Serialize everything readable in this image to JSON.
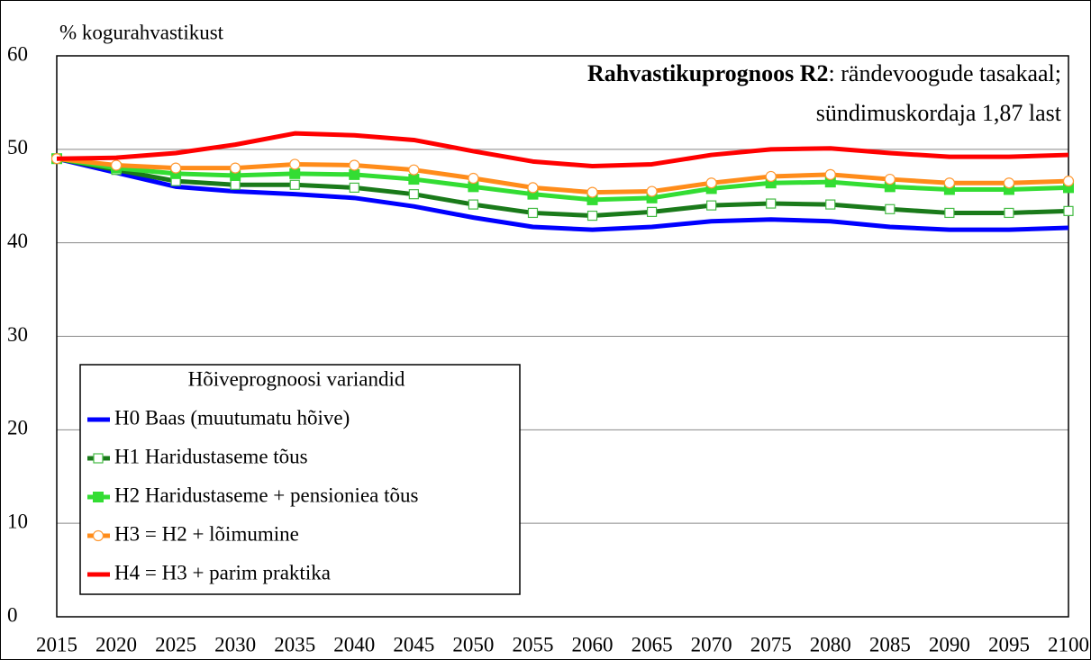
{
  "chart_data": {
    "type": "line",
    "title": "Rahvastikuprognoos R2",
    "title_suffix": ": rändevoogude tasakaal;",
    "subtitle": "sündimuskordaja 1,87 last",
    "y_label": "% kogurahvastikust",
    "legend_title": "Hõiveprognoosi variandid",
    "legend_position": "lower-left",
    "grid": true,
    "x": [
      2015,
      2020,
      2025,
      2030,
      2035,
      2040,
      2045,
      2050,
      2055,
      2060,
      2065,
      2070,
      2075,
      2080,
      2085,
      2090,
      2095,
      2100
    ],
    "xlim": [
      2015,
      2100
    ],
    "xticks": [
      2015,
      2020,
      2025,
      2030,
      2035,
      2040,
      2045,
      2050,
      2055,
      2060,
      2065,
      2070,
      2075,
      2080,
      2085,
      2090,
      2095,
      2100
    ],
    "ylim": [
      0,
      60
    ],
    "yticks": [
      0,
      10,
      20,
      30,
      40,
      50,
      60
    ],
    "series": [
      {
        "name": "H0 Baas (muutumatu hõive)",
        "color": "#0000ff",
        "marker": "none",
        "values": [
          49,
          47.5,
          46.0,
          45.5,
          45.2,
          44.8,
          43.9,
          42.7,
          41.7,
          41.4,
          41.7,
          42.3,
          42.5,
          42.3,
          41.7,
          41.4,
          41.4,
          41.6
        ]
      },
      {
        "name": "H1 Haridustaseme tõus",
        "color": "#1a7a1a",
        "marker": "hollow-square",
        "marker_color": "#44bb44",
        "values": [
          49,
          47.8,
          46.6,
          46.2,
          46.2,
          45.9,
          45.2,
          44.1,
          43.2,
          42.9,
          43.3,
          44.0,
          44.2,
          44.1,
          43.6,
          43.2,
          43.2,
          43.4
        ]
      },
      {
        "name": "H2 Haridustaseme + pensioniea tõus",
        "color": "#33dd33",
        "marker": "square",
        "marker_color": "#33dd33",
        "values": [
          49,
          48.0,
          47.4,
          47.2,
          47.4,
          47.3,
          46.8,
          46.0,
          45.2,
          44.6,
          44.8,
          45.8,
          46.4,
          46.5,
          46.0,
          45.7,
          45.7,
          45.9
        ]
      },
      {
        "name": "H3 = H2 + lõimumine",
        "color": "#ff8c1a",
        "marker": "hollow-circle",
        "marker_color": "#ff9933",
        "values": [
          49,
          48.3,
          48.0,
          48.0,
          48.4,
          48.3,
          47.8,
          46.9,
          45.9,
          45.4,
          45.5,
          46.4,
          47.1,
          47.3,
          46.8,
          46.4,
          46.4,
          46.6
        ]
      },
      {
        "name": "H4 = H3 + parim praktika",
        "color": "#ff0000",
        "marker": "none",
        "values": [
          49,
          49.1,
          49.6,
          50.5,
          51.7,
          51.5,
          51.0,
          49.8,
          48.7,
          48.2,
          48.4,
          49.4,
          50.0,
          50.1,
          49.6,
          49.2,
          49.2,
          49.4
        ]
      }
    ]
  }
}
